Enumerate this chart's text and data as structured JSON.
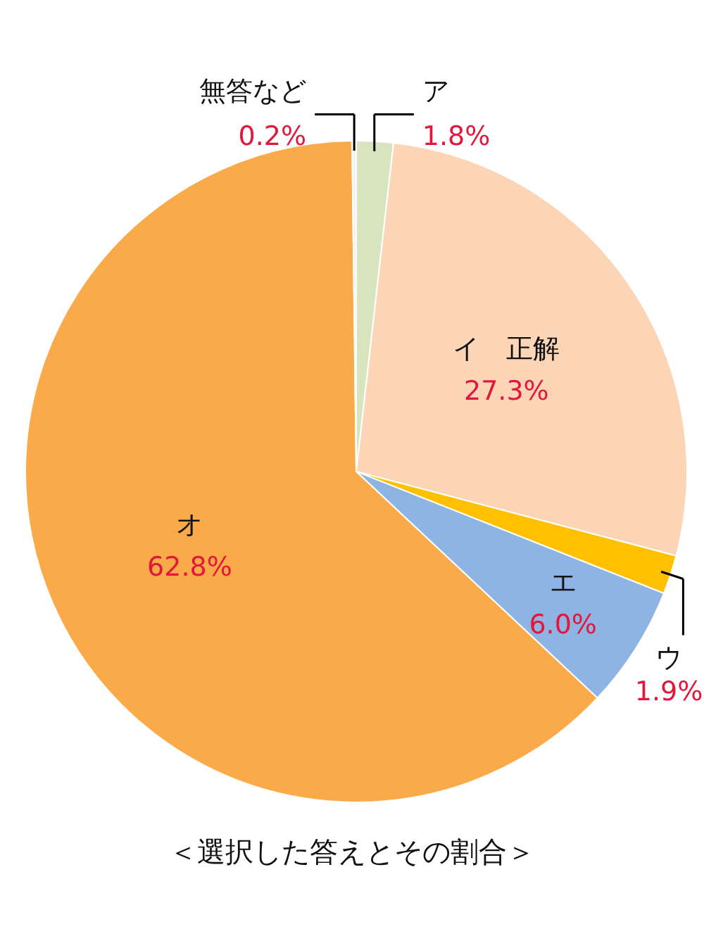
{
  "chart_data": {
    "type": "pie",
    "title": "＜選択した答えとその割合＞",
    "categories": [
      "ア",
      "イ　正解",
      "ウ",
      "エ",
      "オ",
      "無答など"
    ],
    "values": [
      1.8,
      27.3,
      1.9,
      6.0,
      62.8,
      0.2
    ],
    "colors": [
      "#d7e4bd",
      "#fbd5b5",
      "#ffc000",
      "#8eb4e3",
      "#fbaa4a",
      "#f2f2f2"
    ],
    "value_labels": [
      "1.8%",
      "27.3%",
      "1.9%",
      "6.0%",
      "62.8%",
      "0.2%"
    ]
  }
}
